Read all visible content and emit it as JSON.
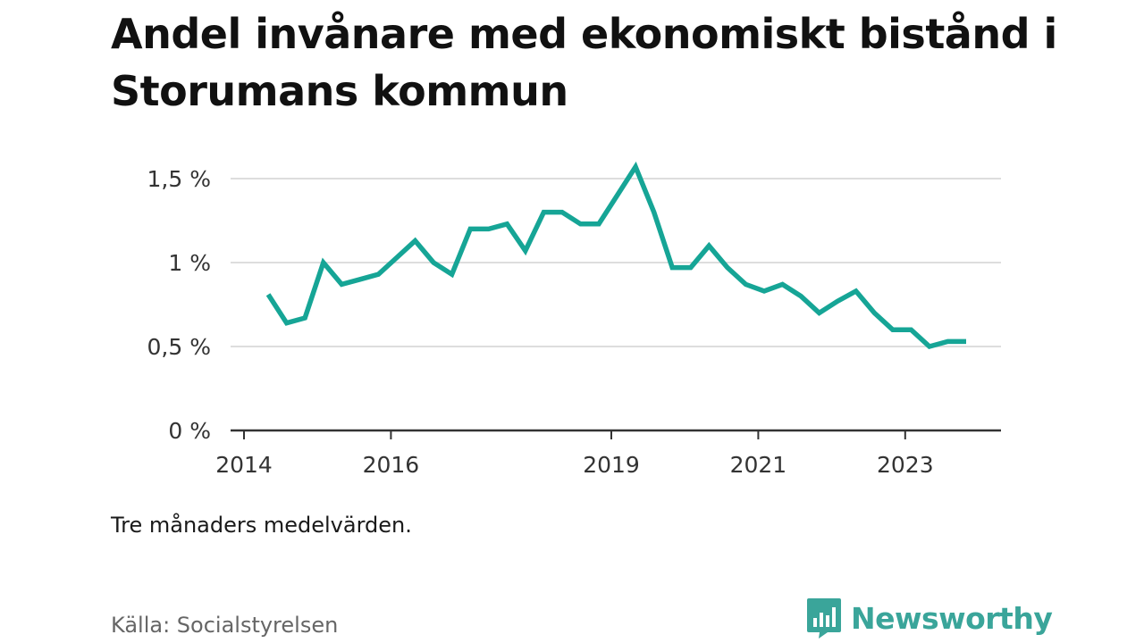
{
  "title": "Andel invånare med ekonomiskt bistånd i Storumans kommun",
  "note": "Tre månaders medelvärden.",
  "source": "Källa: Socialstyrelsen",
  "brand": "Newsworthy",
  "colors": {
    "line": "#16a596",
    "grid": "#dddddd",
    "axis": "#333333",
    "brand": "#3aa59a"
  },
  "icons": {
    "brand_logo": "bar-chart-speech-bubble-icon"
  },
  "chart_data": {
    "type": "line",
    "title": "Andel invånare med ekonomiskt bistånd i Storumans kommun",
    "xlabel": "",
    "ylabel": "",
    "ylim": [
      0,
      1.5
    ],
    "grid": true,
    "y_ticks": [
      {
        "value": 0,
        "label": "0 %"
      },
      {
        "value": 0.5,
        "label": "0,5 %"
      },
      {
        "value": 1,
        "label": "1 %"
      },
      {
        "value": 1.5,
        "label": "1,5 %"
      }
    ],
    "x_ticks": [
      {
        "value": 2014,
        "label": "2014"
      },
      {
        "value": 2016,
        "label": "2016"
      },
      {
        "value": 2019,
        "label": "2019"
      },
      {
        "value": 2021,
        "label": "2021"
      },
      {
        "value": 2023,
        "label": "2023"
      }
    ],
    "xlim": [
      2014,
      2024.35
    ],
    "series": [
      {
        "x": [
          2014.33,
          2014.58,
          2014.83,
          2015.08,
          2015.33,
          2015.58,
          2015.83,
          2016.08,
          2016.33,
          2016.58,
          2016.83,
          2017.08,
          2017.33,
          2017.58,
          2017.83,
          2018.08,
          2018.33,
          2018.58,
          2018.83,
          2019.08,
          2019.33,
          2019.58,
          2019.83,
          2020.08,
          2020.33,
          2020.58,
          2020.83,
          2021.08,
          2021.33,
          2021.58,
          2021.83,
          2022.08,
          2022.33,
          2022.58,
          2022.83,
          2023.08,
          2023.33,
          2023.58,
          2023.83
        ],
        "y": [
          0.81,
          0.64,
          0.67,
          1.0,
          0.87,
          0.9,
          0.93,
          1.03,
          1.13,
          1.0,
          0.93,
          1.2,
          1.2,
          1.23,
          1.07,
          1.3,
          1.3,
          1.23,
          1.23,
          1.4,
          1.57,
          1.3,
          0.97,
          0.97,
          1.1,
          0.97,
          0.87,
          0.83,
          0.87,
          0.8,
          0.7,
          0.77,
          0.83,
          0.7,
          0.6,
          0.6,
          0.5,
          0.53,
          0.53
        ]
      }
    ]
  }
}
